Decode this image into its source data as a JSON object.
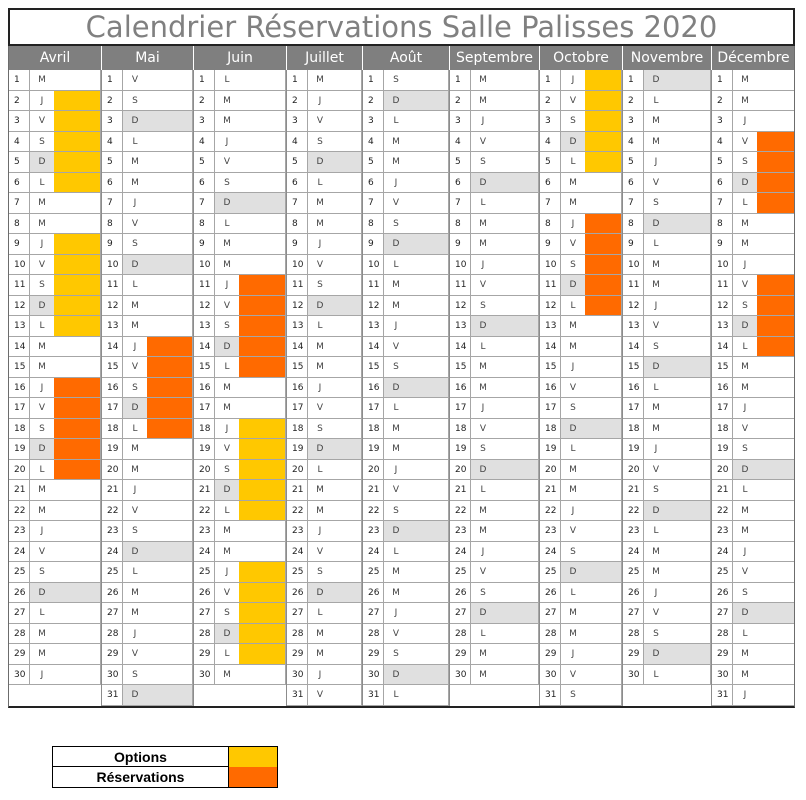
{
  "title": "Calendrier Réservations Salle Palisses 2020",
  "colors": {
    "header_bg": "#7f7f7f",
    "sunday_bg": "#e0e0e0",
    "option": "#ffc800",
    "reservation": "#ff6a00"
  },
  "legend": [
    {
      "label": "Options",
      "status": "option"
    },
    {
      "label": "Réservations",
      "status": "reservation"
    }
  ],
  "months": [
    {
      "name": "Avril",
      "letters": "MJVSDLMMJVSDLMMJVSDLMMJVSDLMMJ",
      "options": [
        2,
        3,
        4,
        5,
        6,
        9,
        10,
        11,
        12,
        13
      ],
      "reservations": [
        16,
        17,
        18,
        19,
        20
      ]
    },
    {
      "name": "Mai",
      "letters": "VSDLMMJVSDLMMJVSDLMMJVSDLMMJVSD",
      "options": [],
      "reservations": [
        14,
        15,
        16,
        17,
        18
      ]
    },
    {
      "name": "Juin",
      "letters": "LMMJVSDLMMJVSDLMMJVSDLMMJVSDLM",
      "options": [
        18,
        19,
        20,
        21,
        22,
        25,
        26,
        27,
        28,
        29
      ],
      "reservations": [
        11,
        12,
        13,
        14,
        15
      ]
    },
    {
      "name": "Juillet",
      "letters": "MJVSDLMMJVSDLMMJVSDLMMJVSDLMMJV",
      "options": [],
      "reservations": []
    },
    {
      "name": "Août",
      "letters": "SDLMMJVSDLMMJVSDLMMJVSDLMMJVSDL",
      "options": [],
      "reservations": []
    },
    {
      "name": "Septembre",
      "letters": "MMJVSDLMMJVSDLMMJVSDLMMJVSDLMM",
      "options": [],
      "reservations": []
    },
    {
      "name": "Octobre",
      "letters": "JVSDLMMJVSDLMMJVSDLMMJVSDLMMJVS",
      "options": [
        1,
        2,
        3,
        4,
        5
      ],
      "reservations": [
        8,
        9,
        10,
        11,
        12
      ]
    },
    {
      "name": "Novembre",
      "letters": "DLMMJVSDLMMJVSDLMMJVSDLMMJVSDL",
      "options": [],
      "reservations": []
    },
    {
      "name": "Décembre",
      "letters": "MMJVSDLMMJVSDLMMJVSDLMMJVSDLMMJ",
      "options": [],
      "reservations": [
        4,
        5,
        6,
        7,
        11,
        12,
        13,
        14
      ]
    }
  ]
}
